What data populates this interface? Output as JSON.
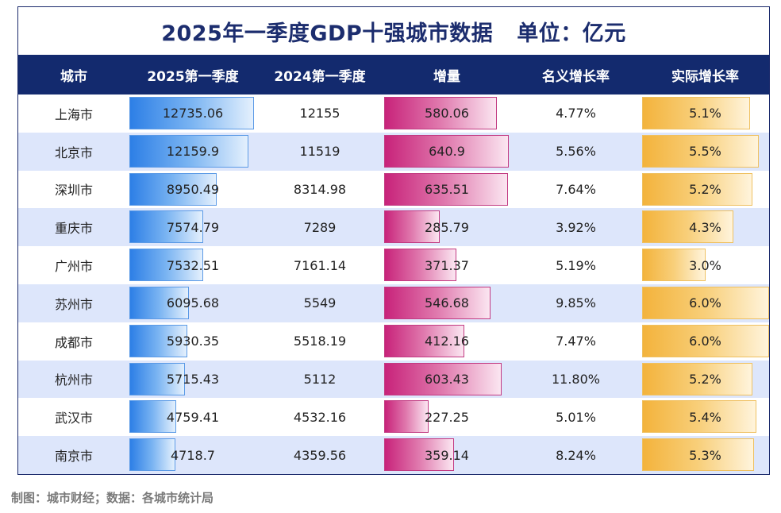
{
  "chart_data": {
    "type": "table",
    "title": "2025年一季度GDP十强城市数据",
    "unit": "单位：亿元",
    "columns": [
      "城市",
      "2025第一季度",
      "2024第一季度",
      "增量",
      "名义增长率",
      "实际增长率"
    ],
    "rows": [
      {
        "city": "上海市",
        "q1_2025": "12735.06",
        "q1_2024": "12155",
        "increase": "580.06",
        "nominal": "4.77%",
        "real": "5.1%"
      },
      {
        "city": "北京市",
        "q1_2025": "12159.9",
        "q1_2024": "11519",
        "increase": "640.9",
        "nominal": "5.56%",
        "real": "5.5%"
      },
      {
        "city": "深圳市",
        "q1_2025": "8950.49",
        "q1_2024": "8314.98",
        "increase": "635.51",
        "nominal": "7.64%",
        "real": "5.2%"
      },
      {
        "city": "重庆市",
        "q1_2025": "7574.79",
        "q1_2024": "7289",
        "increase": "285.79",
        "nominal": "3.92%",
        "real": "4.3%"
      },
      {
        "city": "广州市",
        "q1_2025": "7532.51",
        "q1_2024": "7161.14",
        "increase": "371.37",
        "nominal": "5.19%",
        "real": "3.0%"
      },
      {
        "city": "苏州市",
        "q1_2025": "6095.68",
        "q1_2024": "5549",
        "increase": "546.68",
        "nominal": "9.85%",
        "real": "6.0%"
      },
      {
        "city": "成都市",
        "q1_2025": "5930.35",
        "q1_2024": "5518.19",
        "increase": "412.16",
        "nominal": "7.47%",
        "real": "6.0%"
      },
      {
        "city": "杭州市",
        "q1_2025": "5715.43",
        "q1_2024": "5112",
        "increase": "603.43",
        "nominal": "11.80%",
        "real": "5.2%"
      },
      {
        "city": "武汉市",
        "q1_2025": "4759.41",
        "q1_2024": "4532.16",
        "increase": "227.25",
        "nominal": "5.01%",
        "real": "5.4%"
      },
      {
        "city": "南京市",
        "q1_2025": "4718.7",
        "q1_2024": "4359.56",
        "increase": "359.14",
        "nominal": "8.24%",
        "real": "5.3%"
      }
    ],
    "bar_colors": {
      "gdp": "#2d7fe6",
      "increase": "#c8237a",
      "real": "#f3b33c"
    }
  },
  "footer": "制图：城市财经；数据：各城市统计局"
}
